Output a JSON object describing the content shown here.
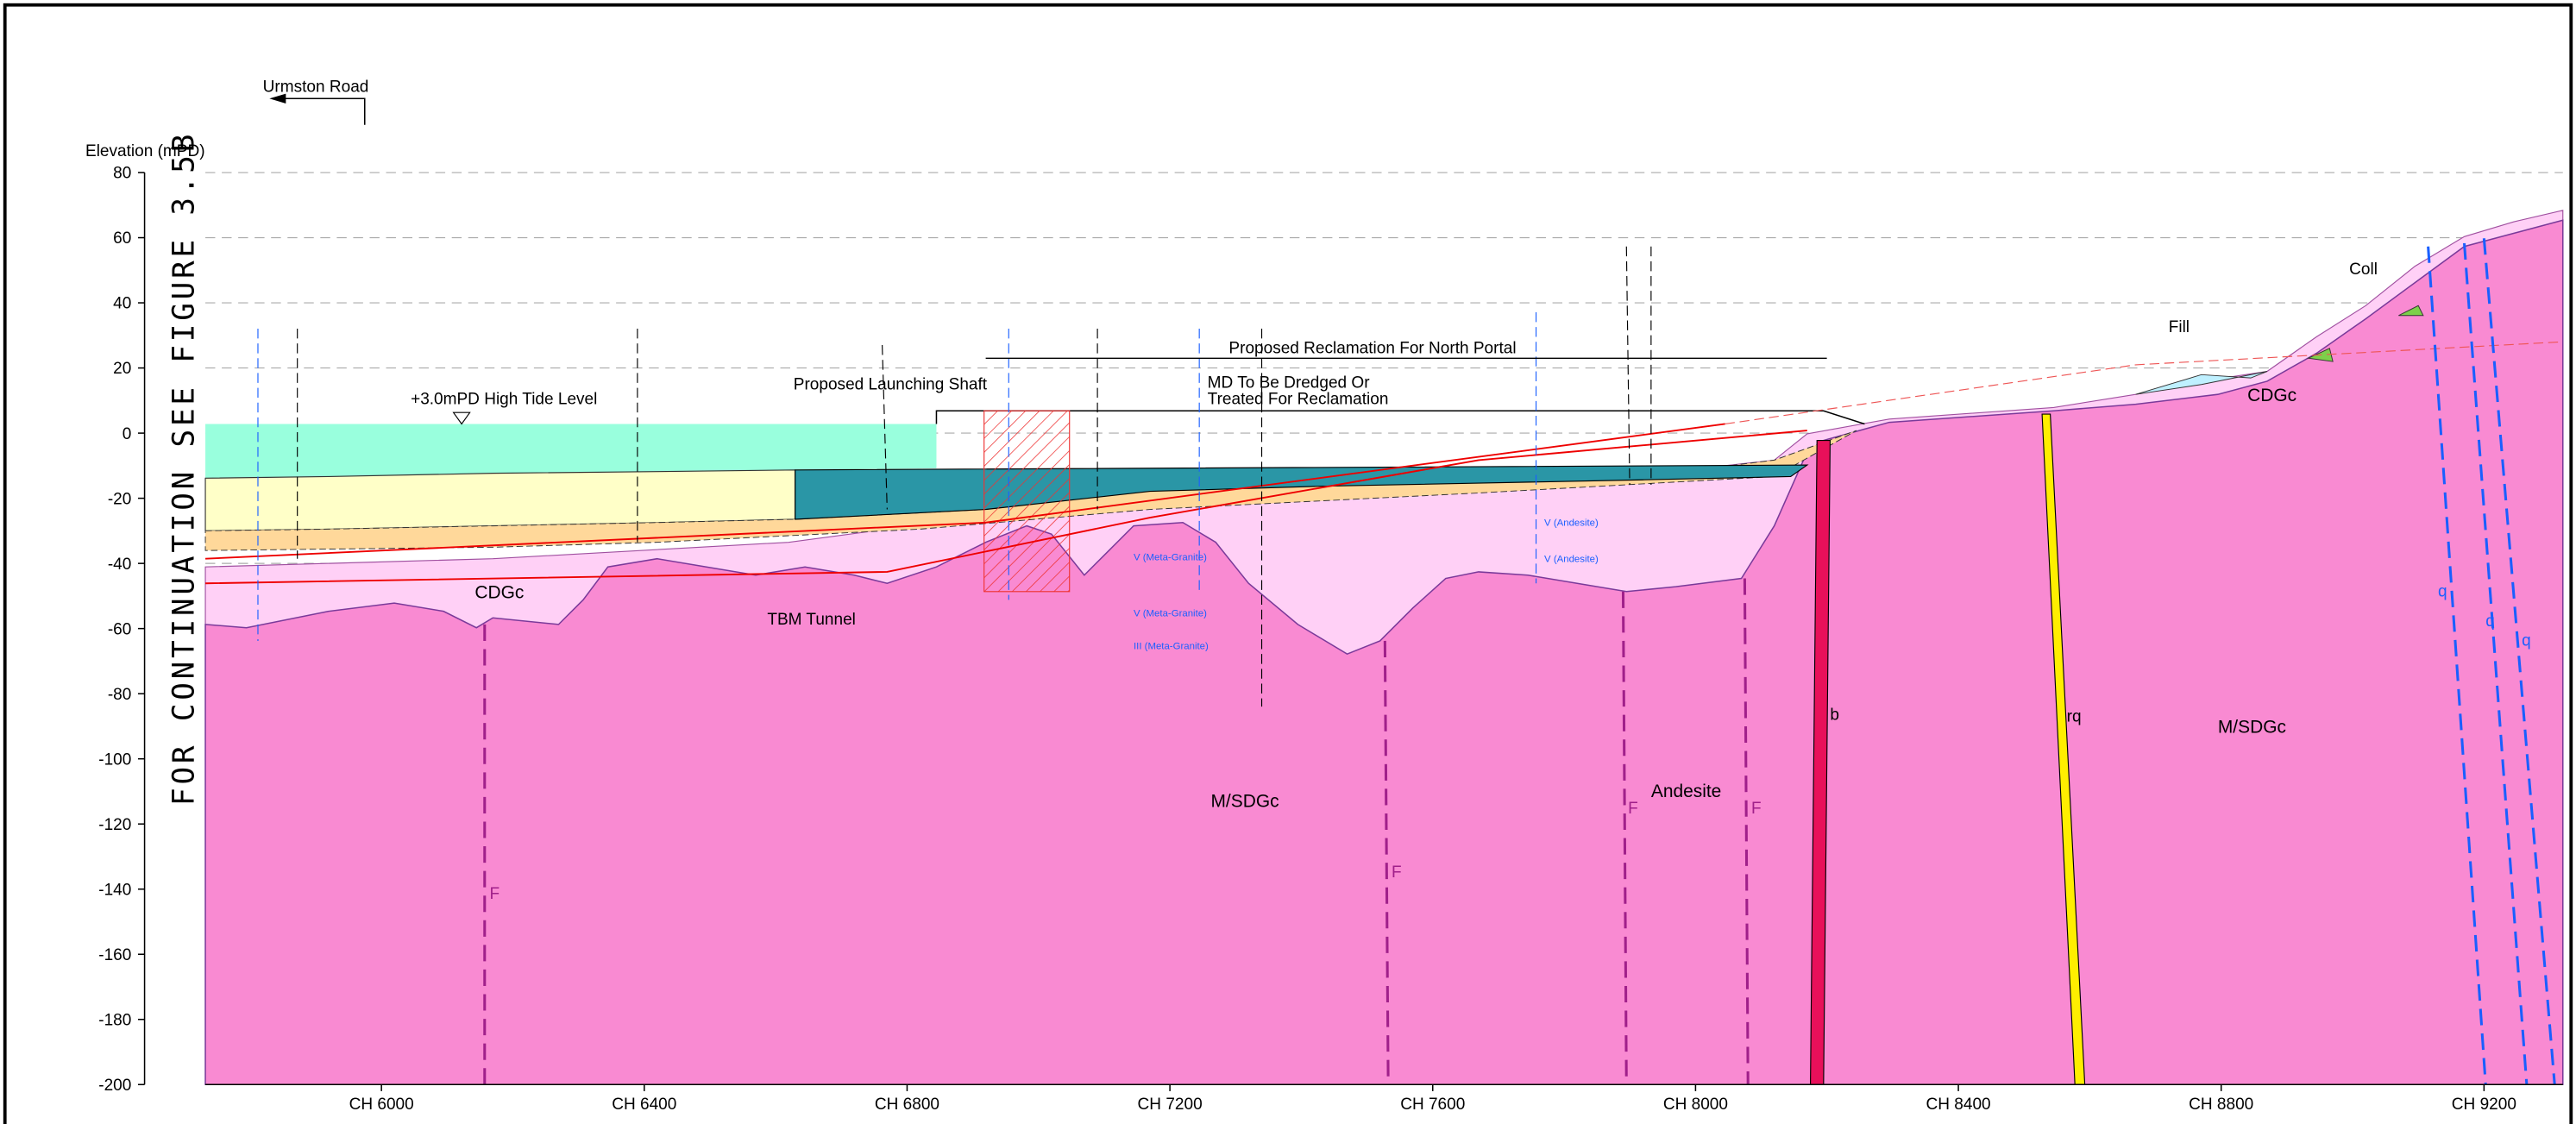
{
  "header": {
    "road": "Urmston Road",
    "continuation": "FOR CONTINUATION SEE FIGURE 3.5B"
  },
  "axes": {
    "y_label": "Elevation (mPD)",
    "ylim": [
      -200,
      80
    ],
    "yticks": [
      80,
      60,
      40,
      20,
      0,
      -20,
      -40,
      -60,
      -80,
      -100,
      -120,
      -140,
      -160,
      -180,
      -200
    ],
    "xlim": [
      5732,
      9320
    ],
    "xticks": [
      {
        "value": 6000,
        "label": "CH 6000"
      },
      {
        "value": 6400,
        "label": "CH 6400"
      },
      {
        "value": 6800,
        "label": "CH 6800"
      },
      {
        "value": 7200,
        "label": "CH 7200"
      },
      {
        "value": 7600,
        "label": "CH 7600"
      },
      {
        "value": 8000,
        "label": "CH 8000"
      },
      {
        "value": 8400,
        "label": "CH 8400"
      },
      {
        "value": 8800,
        "label": "CH 8800"
      },
      {
        "value": 9200,
        "label": "CH 9200"
      }
    ]
  },
  "annotations": [
    "+3.0mPD  High Tide Level",
    "Proposed Launching Shaft",
    "MD To Be Dredged Or",
    "Treated For Reclamation",
    "Proposed Reclamation For North Portal",
    "TBM Tunnel",
    "CDGc",
    "CDGc",
    "M/SDGc",
    "M/SDGc",
    "Andesite",
    "Fill",
    "Coll",
    "b",
    "rq",
    "F",
    "F",
    "F",
    "F",
    "q",
    "q",
    "q",
    "V (Meta-Granite)",
    "V (Meta-Granite)",
    "III (Meta-Granite)",
    "V (Andesite)",
    "V (Andesite)"
  ]
}
